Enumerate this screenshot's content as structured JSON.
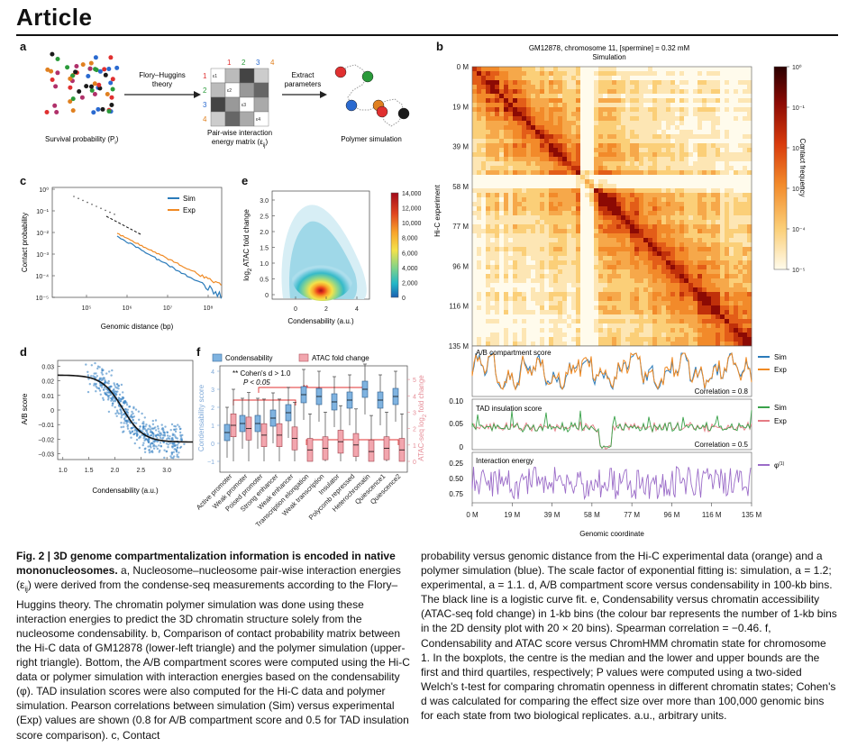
{
  "header": {
    "title": "Article"
  },
  "panel_labels": {
    "a": "a",
    "b": "b",
    "c": "c",
    "d": "d",
    "e": "e",
    "f": "f"
  },
  "panel_a": {
    "survival_label": "Survival probability (P",
    "survival_sub": "i",
    "arrow1_label_1": "Flory–Huggins",
    "arrow1_label_2": "theory",
    "matrix_caption_1": "Pair-wise interaction",
    "matrix_caption_2": "energy matrix (ε",
    "matrix_caption_sub": "ij",
    "arrow2_label_1": "Extract",
    "arrow2_label_2": "parameters",
    "polymer_caption": "Polymer simulation",
    "matrix_indices": [
      "1",
      "2",
      "3",
      "4"
    ]
  },
  "panel_b": {
    "title_1": "GM12878, chromosome 11, [spermine] = 0.32 mM",
    "title_2": "Simulation",
    "ylabel": "Hi-C experiment",
    "xlabel": "Genomic coordinate",
    "ticks": [
      "0 M",
      "19 M",
      "39 M",
      "58 M",
      "77 M",
      "96 M",
      "116 M",
      "135 M"
    ],
    "colorbar_label": "Contact frequency",
    "colorbar_ticks": [
      "10⁰",
      "10⁻¹",
      "10⁻²",
      "10⁻³",
      "10⁻⁴",
      "10⁻⁵"
    ],
    "track1_title": "A/B compartment score",
    "track1_corr": "Correlation = 0.8",
    "track1_legend": [
      "Sim",
      "Exp"
    ],
    "track2_title": "TAD insulation score",
    "track2_corr": "Correlation = 0.5",
    "track2_legend": [
      "Sim",
      "Exp"
    ],
    "track2_ticks": [
      "0.10",
      "0.05",
      "0"
    ],
    "track3_title": "Interaction energy",
    "track3_legend": "φ",
    "track3_legend_sup": "(1)",
    "track3_ticks": [
      "0.25",
      "0.50",
      "0.75"
    ]
  },
  "panel_c": {
    "ylabel": "Contact probability",
    "xlabel": "Genomic distance (bp)",
    "yticks": [
      "10⁰",
      "10⁻¹",
      "10⁻²",
      "10⁻³",
      "10⁻⁴",
      "10⁻⁵"
    ],
    "xticks": [
      "10⁵",
      "10⁶",
      "10⁷",
      "10⁸"
    ],
    "legend": [
      "Sim",
      "Exp"
    ],
    "colors": {
      "sim": "#2b7bba",
      "exp": "#f08a24"
    }
  },
  "panel_d": {
    "ylabel": "A/B score",
    "xlabel": "Condensability (a.u.)",
    "yticks": [
      "0.03",
      "0.02",
      "0.01",
      "0",
      "−0.01",
      "−0.02",
      "−0.03"
    ],
    "xticks": [
      "1.0",
      "1.5",
      "2.0",
      "2.5",
      "3.0"
    ]
  },
  "panel_e": {
    "ylabel_1": "log",
    "ylabel_sub": "2",
    "ylabel_2": " ATAC fold change",
    "xlabel": "Condensability (a.u.)",
    "yticks": [
      "3.0",
      "2.5",
      "2.0",
      "1.5",
      "1.0",
      "0.5",
      "0"
    ],
    "xticks": [
      "0",
      "2",
      "4"
    ],
    "colorbar_ticks": [
      "14,000",
      "12,000",
      "10,000",
      "8,000",
      "6,000",
      "4,000",
      "2,000",
      "0"
    ]
  },
  "panel_f": {
    "legend": [
      "Condensability",
      "ATAC fold change"
    ],
    "note_1": "** Cohen's d > 1.0",
    "note_2": "P < 0.05",
    "ylabel_left": "Condensability score",
    "ylabel_right": "ATAC-seq log",
    "ylabel_right_sub": "2",
    "ylabel_right_2": " fold change",
    "yticks_left": [
      "4",
      "3",
      "2",
      "1",
      "0",
      "−1"
    ],
    "yticks_right": [
      "5",
      "4",
      "3",
      "2",
      "1",
      "0"
    ],
    "states": [
      "Active promoter",
      "Weak promoter",
      "Poised promoter",
      "Strong enhancer",
      "Weak enhancer",
      "Transcription elongation",
      "Weak transcription",
      "Insulator",
      "Polycomb repressed",
      "Heterochromatin",
      "Quiescence1",
      "Quiescence2"
    ],
    "colors": {
      "cond": "#7fb3e0",
      "atac": "#f2a6ae"
    }
  },
  "caption_left": {
    "lead": "Fig. 2 | 3D genome compartmentalization information is encoded in native mononucleosomes.",
    "body": " a, Nucleosome–nucleosome pair-wise interaction energies (ε",
    "sub_ij": "ij",
    "body2": ") were derived from the condense-seq measurements according to the Flory–Huggins theory. The chromatin polymer simulation was done using these interaction energies to predict the 3D chromatin structure solely from the nucleosome condensability. b, Comparison of contact probability matrix between the Hi-C data of GM12878 (lower-left triangle) and the polymer simulation (upper-right triangle). Bottom, the A/B compartment scores were computed using the Hi-C data or polymer simulation with interaction energies based on the condensability (φ). TAD insulation scores were also computed for the Hi-C data and polymer simulation. Pearson correlations between simulation (Sim) versus experimental (Exp) values are shown (0.8 for A/B compartment score and 0.5 for TAD insulation score comparison). c, Contact"
  },
  "caption_right": {
    "body": "probability versus genomic distance from the Hi-C experimental data (orange) and a polymer simulation (blue). The scale factor of exponential fitting is: simulation, a = 1.2; experimental, a = 1.1. d, A/B compartment score versus condensability in 100-kb bins. The black line is a logistic curve fit. e, Condensability versus chromatin accessibility (ATAC-seq fold change) in 1-kb bins (the colour bar represents the number of 1-kb bins in the 2D density plot with 20 × 20 bins). Spearman correlation = −0.46. f, Condensability and ATAC score versus ChromHMM chromatin state for chromosome 1. In the boxplots, the centre is the median and the lower and upper bounds are the first and third quartiles, respectively; P values were computed using a two-sided Welch's t-test for comparing chromatin openness in different chromatin states; Cohen's d was calculated for comparing the effect size over more than 100,000 genomic bins for each state from two biological replicates. a.u., arbitrary units."
  }
}
